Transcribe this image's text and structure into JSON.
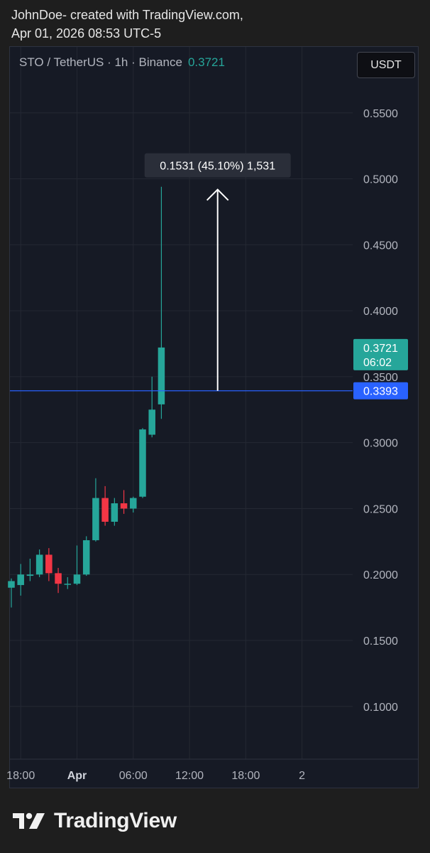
{
  "header": {
    "line1": "JohnDoe- created with TradingView.com,",
    "line2": "Apr 01, 2026 08:53 UTC-5"
  },
  "symbol": {
    "label": "STO / TetherUS · 1h · Binance",
    "last_price": "0.3721"
  },
  "currency_button": "USDT",
  "footer": {
    "brand": "TradingView"
  },
  "colors": {
    "up": "#26a69a",
    "down": "#f23645",
    "line": "#2962ff",
    "grid": "#242833",
    "text": "#b2b5be"
  },
  "chart_data": {
    "type": "candlestick",
    "x_unit": "hour",
    "x_ticks": [
      {
        "label": "18:00",
        "x": 18
      },
      {
        "label": "Apr",
        "x": 24
      },
      {
        "label": "06:00",
        "x": 30
      },
      {
        "label": "12:00",
        "x": 36
      },
      {
        "label": "18:00",
        "x": 42
      },
      {
        "label": "2",
        "x": 48
      }
    ],
    "y_ticks": [
      "0.1000",
      "0.1500",
      "0.2000",
      "0.2500",
      "0.3000",
      "0.3500",
      "0.4000",
      "0.4500",
      "0.5000",
      "0.5500"
    ],
    "ylim": [
      0.06,
      0.6
    ],
    "xlim": [
      16.85,
      53.4
    ],
    "candles": [
      {
        "t": 17,
        "o": 0.19,
        "h": 0.197,
        "l": 0.175,
        "c": 0.195
      },
      {
        "t": 18,
        "o": 0.192,
        "h": 0.208,
        "l": 0.184,
        "c": 0.2
      },
      {
        "t": 19,
        "o": 0.199,
        "h": 0.212,
        "l": 0.195,
        "c": 0.2
      },
      {
        "t": 20,
        "o": 0.2,
        "h": 0.219,
        "l": 0.198,
        "c": 0.215
      },
      {
        "t": 21,
        "o": 0.215,
        "h": 0.22,
        "l": 0.195,
        "c": 0.201
      },
      {
        "t": 22,
        "o": 0.201,
        "h": 0.205,
        "l": 0.186,
        "c": 0.193
      },
      {
        "t": 23,
        "o": 0.193,
        "h": 0.198,
        "l": 0.189,
        "c": 0.193
      },
      {
        "t": 24,
        "o": 0.193,
        "h": 0.222,
        "l": 0.192,
        "c": 0.2
      },
      {
        "t": 25,
        "o": 0.2,
        "h": 0.229,
        "l": 0.199,
        "c": 0.226
      },
      {
        "t": 26,
        "o": 0.226,
        "h": 0.273,
        "l": 0.225,
        "c": 0.258
      },
      {
        "t": 27,
        "o": 0.258,
        "h": 0.267,
        "l": 0.237,
        "c": 0.24
      },
      {
        "t": 28,
        "o": 0.24,
        "h": 0.258,
        "l": 0.237,
        "c": 0.254
      },
      {
        "t": 29,
        "o": 0.254,
        "h": 0.264,
        "l": 0.246,
        "c": 0.25
      },
      {
        "t": 30,
        "o": 0.25,
        "h": 0.259,
        "l": 0.247,
        "c": 0.258
      },
      {
        "t": 31,
        "o": 0.259,
        "h": 0.311,
        "l": 0.258,
        "c": 0.31
      },
      {
        "t": 32,
        "o": 0.306,
        "h": 0.35,
        "l": 0.304,
        "c": 0.325
      },
      {
        "t": 33,
        "o": 0.329,
        "h": 0.494,
        "l": 0.318,
        "c": 0.3721
      }
    ],
    "horizontal_line": {
      "value": 0.3393,
      "label": "0.3393"
    },
    "last_price_label": {
      "value": 0.3721,
      "label": "0.3721",
      "countdown": "06:02"
    },
    "measure": {
      "x": 39,
      "from": 0.3393,
      "to": 0.4924,
      "label": "0.1531 (45.10%) 1,531"
    }
  }
}
